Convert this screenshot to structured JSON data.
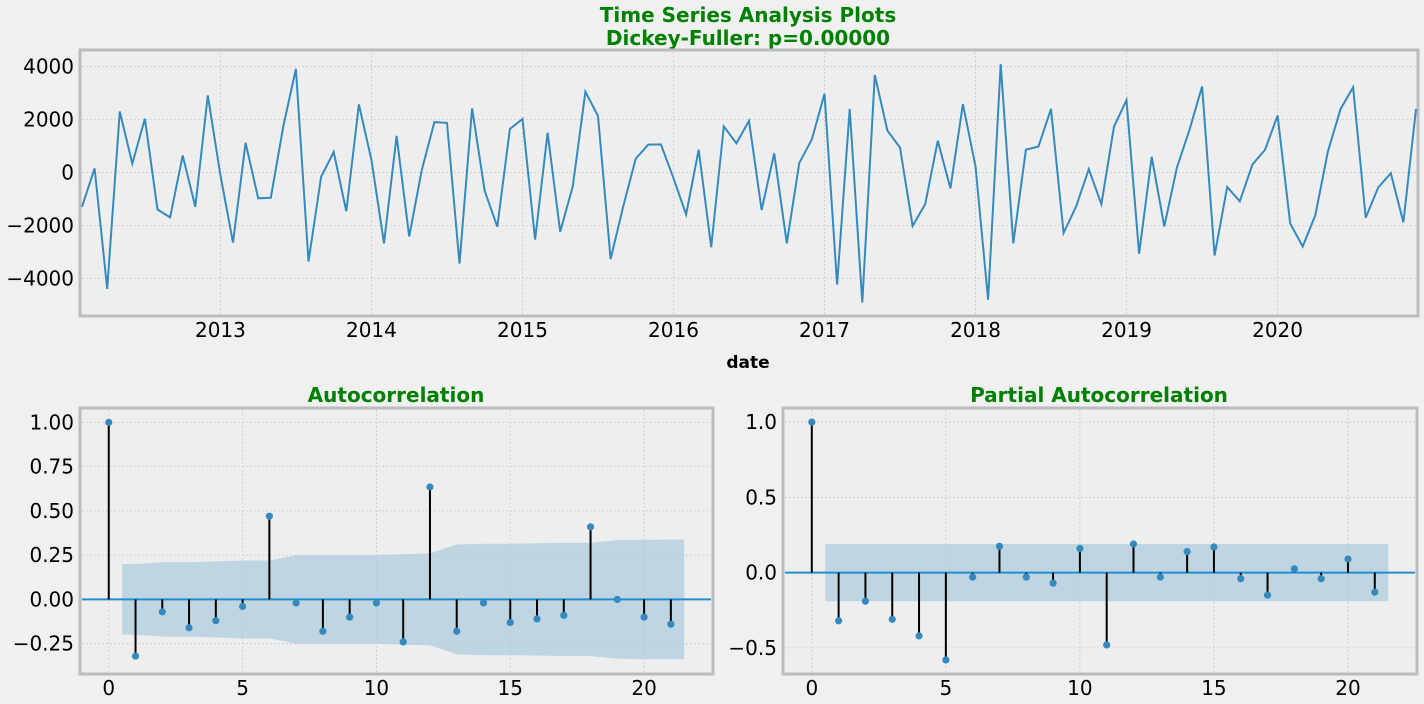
{
  "chart_data": [
    {
      "type": "line",
      "title": "Time Series Analysis Plots",
      "subtitle": "Dickey-Fuller: p=0.00000",
      "xlabel": "date",
      "ylabel": "",
      "x_ticks": [
        "2013",
        "2014",
        "2015",
        "2016",
        "2017",
        "2018",
        "2019",
        "2020"
      ],
      "y_ticks": [
        "4000",
        "2000",
        "0",
        "−2000",
        "−4000"
      ],
      "ylim": [
        -5350,
        4550
      ],
      "xlim": [
        "2012-02",
        "2020-12"
      ],
      "grid": true,
      "color": "#348abd",
      "series": [
        {
          "x": [
            "2012-02",
            "2012-03",
            "2012-04",
            "2012-05",
            "2012-06",
            "2012-07",
            "2012-08",
            "2012-09",
            "2012-10",
            "2012-11",
            "2012-12",
            "2013-01",
            "2013-02",
            "2013-03",
            "2013-04",
            "2013-05",
            "2013-06",
            "2013-07",
            "2013-08",
            "2013-09",
            "2013-10",
            "2013-11",
            "2013-12",
            "2014-01",
            "2014-02",
            "2014-03",
            "2014-04",
            "2014-05",
            "2014-06",
            "2014-07",
            "2014-08",
            "2014-09",
            "2014-10",
            "2014-11",
            "2014-12",
            "2015-01",
            "2015-02",
            "2015-03",
            "2015-04",
            "2015-05",
            "2015-06",
            "2015-07",
            "2015-08",
            "2015-09",
            "2015-10",
            "2015-11",
            "2015-12",
            "2016-01",
            "2016-02",
            "2016-03",
            "2016-04",
            "2016-05",
            "2016-06",
            "2016-07",
            "2016-08",
            "2016-09",
            "2016-10",
            "2016-11",
            "2016-12",
            "2017-01",
            "2017-02",
            "2017-03",
            "2017-04",
            "2017-05",
            "2017-06",
            "2017-07",
            "2017-08",
            "2017-09",
            "2017-10",
            "2017-11",
            "2017-12",
            "2018-01",
            "2018-02",
            "2018-03",
            "2018-04",
            "2018-05",
            "2018-06",
            "2018-07",
            "2018-08",
            "2018-09",
            "2018-10",
            "2018-11",
            "2018-12",
            "2019-01",
            "2019-02",
            "2019-03",
            "2019-04",
            "2019-05",
            "2019-06",
            "2019-07",
            "2019-08",
            "2019-09",
            "2019-10",
            "2019-11",
            "2019-12",
            "2020-01",
            "2020-02",
            "2020-03",
            "2020-04",
            "2020-05",
            "2020-06",
            "2020-07",
            "2020-08",
            "2020-09",
            "2020-10",
            "2020-11",
            "2020-12"
          ],
          "values": [
            -1300,
            150,
            -4400,
            2300,
            330,
            2030,
            -1400,
            -1700,
            640,
            -1300,
            2910,
            -100,
            -2650,
            1120,
            -980,
            -960,
            1760,
            3910,
            -3370,
            -170,
            770,
            -1470,
            2570,
            460,
            -2680,
            1380,
            -2420,
            90,
            1900,
            1870,
            -3440,
            2420,
            -700,
            -2050,
            1640,
            2020,
            -2540,
            1500,
            -2240,
            -520,
            3050,
            2130,
            -3270,
            -1290,
            520,
            1050,
            1060,
            -220,
            -1590,
            860,
            -2830,
            1740,
            1100,
            1950,
            -1420,
            720,
            -2680,
            360,
            1250,
            2970,
            -4240,
            2400,
            -4920,
            3680,
            1580,
            940,
            -2020,
            -1200,
            1200,
            -600,
            2580,
            230,
            -4810,
            4090,
            -2680,
            860,
            980,
            2400,
            -2290,
            -1280,
            120,
            -1200,
            1730,
            2730,
            -3070,
            590,
            -2040,
            180,
            1610,
            3250,
            -3140,
            -550,
            -1090,
            300,
            850,
            2150,
            -1930,
            -2800,
            -1620,
            790,
            2390,
            3220,
            -1710,
            -570,
            -30,
            -1890,
            2400
          ]
        }
      ]
    },
    {
      "type": "stem",
      "title": "Autocorrelation",
      "x_ticks": [
        "0",
        "5",
        "10",
        "15",
        "20"
      ],
      "y_ticks": [
        "1.00",
        "0.75",
        "0.50",
        "0.25",
        "0.00",
        "−0.25"
      ],
      "ylim": [
        -0.41,
        1.07
      ],
      "xlim": [
        -1,
        22.5
      ],
      "grid": true,
      "lags": [
        0,
        1,
        2,
        3,
        4,
        5,
        6,
        7,
        8,
        9,
        10,
        11,
        12,
        13,
        14,
        15,
        16,
        17,
        18,
        19,
        20,
        21
      ],
      "values": [
        1.0,
        -0.32,
        -0.07,
        -0.16,
        -0.12,
        -0.04,
        0.47,
        -0.02,
        -0.18,
        -0.1,
        -0.02,
        -0.24,
        0.635,
        -0.18,
        -0.02,
        -0.13,
        -0.11,
        -0.09,
        0.41,
        0.0,
        -0.1,
        -0.14
      ],
      "confidence_band": [
        0.19,
        0.2,
        0.21,
        0.21,
        0.215,
        0.22,
        0.22,
        0.25,
        0.25,
        0.25,
        0.25,
        0.255,
        0.26,
        0.31,
        0.315,
        0.315,
        0.317,
        0.32,
        0.32,
        0.335,
        0.337,
        0.338
      ],
      "marker_color": "#348abd",
      "band_color": "#a6c8dc"
    },
    {
      "type": "stem",
      "title": "Partial Autocorrelation",
      "x_ticks": [
        "0",
        "5",
        "10",
        "15",
        "20"
      ],
      "y_ticks": [
        "1.0",
        "0.5",
        "0.0",
        "−0.5"
      ],
      "ylim": [
        -0.66,
        1.08
      ],
      "xlim": [
        -1,
        22.5
      ],
      "grid": true,
      "lags": [
        0,
        1,
        2,
        3,
        4,
        5,
        6,
        7,
        8,
        9,
        10,
        11,
        12,
        13,
        14,
        15,
        16,
        17,
        18,
        19,
        20,
        21
      ],
      "values": [
        1.0,
        -0.32,
        -0.19,
        -0.31,
        -0.42,
        -0.58,
        -0.03,
        0.175,
        -0.03,
        -0.07,
        0.16,
        -0.48,
        0.19,
        -0.03,
        0.14,
        0.17,
        -0.04,
        -0.15,
        0.025,
        -0.04,
        0.09,
        -0.13
      ],
      "confidence_band": [
        0.19,
        0.19,
        0.19,
        0.19,
        0.19,
        0.19,
        0.19,
        0.19,
        0.19,
        0.19,
        0.19,
        0.19,
        0.19,
        0.19,
        0.19,
        0.19,
        0.19,
        0.19,
        0.19,
        0.19,
        0.19,
        0.19
      ],
      "marker_color": "#348abd",
      "band_color": "#a6c8dc"
    }
  ]
}
